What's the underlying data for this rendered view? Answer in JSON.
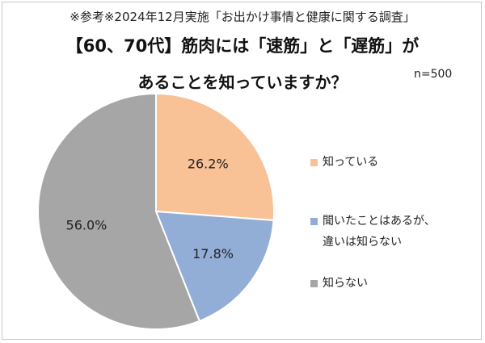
{
  "note": "※参考※2024年12月実施「お出かけ事情と健康に関する調査」",
  "title_line1": "【60、70代】筋肉には「速筋」と「遅筋」が",
  "title_line2": "あることを知っていますか？",
  "n_label": "n=500",
  "chart_data": {
    "type": "pie",
    "title": "【60、70代】筋肉には「速筋」と「遅筋」があることを知っていますか？",
    "categories": [
      "知っている",
      "聞いたことはあるが、違いは知らない",
      "知らない"
    ],
    "values": [
      26.2,
      17.8,
      56.0
    ],
    "labels": [
      "26.2%",
      "17.8%",
      "56.0%"
    ],
    "colors": [
      "#F8C196",
      "#93AED6",
      "#A6A6A6"
    ],
    "legend_placement": "right",
    "start_angle": "12 o'clock, clockwise"
  },
  "legend": [
    {
      "lines": [
        "知っている"
      ],
      "color": "#F8C196"
    },
    {
      "lines": [
        "聞いたことはあるが、",
        "違いは知らない"
      ],
      "color": "#93AED6"
    },
    {
      "lines": [
        "知らない"
      ],
      "color": "#A6A6A6"
    }
  ]
}
